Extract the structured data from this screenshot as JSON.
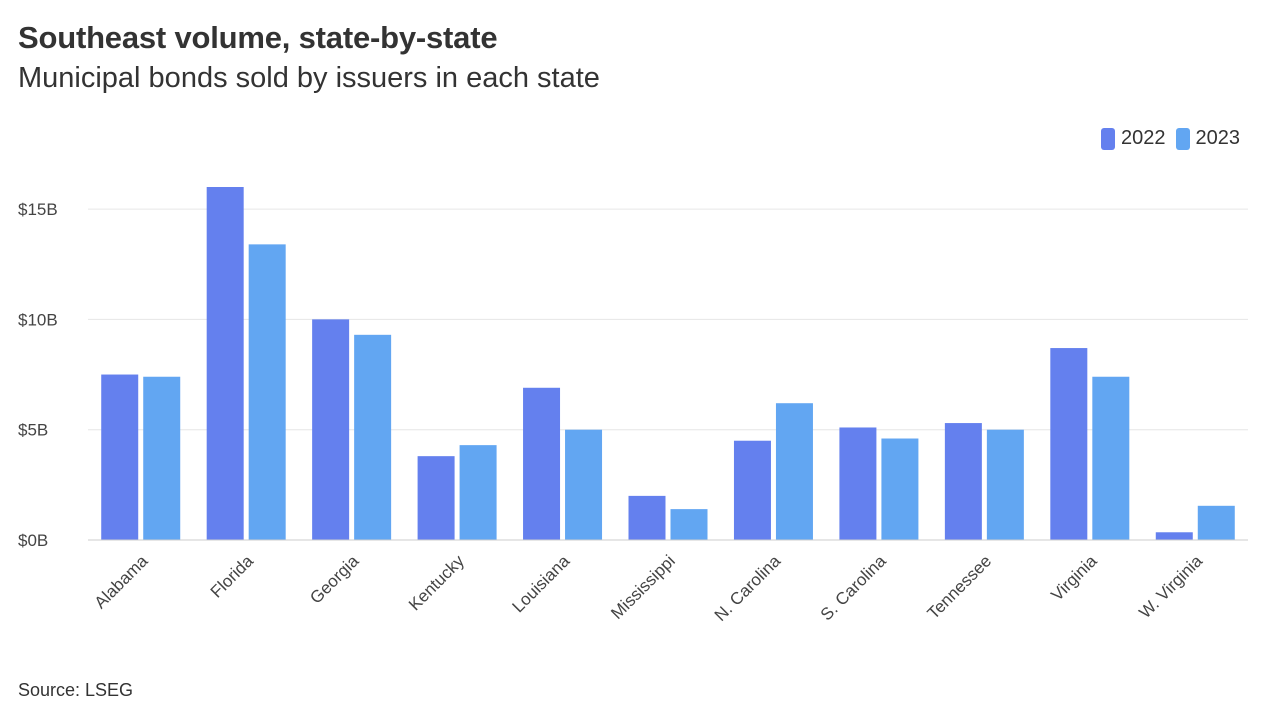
{
  "title": "Southeast volume, state-by-state",
  "subtitle": "Municipal bonds sold by issuers in each state",
  "source": "Source: LSEG",
  "colors": {
    "series_2022": "#6480ee",
    "series_2023": "#62a6f2",
    "grid": "#e6e6e6",
    "axis": "#cccccc"
  },
  "chart_data": {
    "type": "bar",
    "title": "Southeast volume, state-by-state",
    "subtitle": "Municipal bonds sold by issuers in each state",
    "categories": [
      "Alabama",
      "Florida",
      "Georgia",
      "Kentucky",
      "Louisiana",
      "Mississippi",
      "N. Carolina",
      "S. Carolina",
      "Tennessee",
      "Virginia",
      "W. Virginia"
    ],
    "series": [
      {
        "name": "2022",
        "values": [
          7.5,
          16.0,
          10.0,
          3.8,
          6.9,
          2.0,
          4.5,
          5.1,
          5.3,
          8.7,
          0.35
        ]
      },
      {
        "name": "2023",
        "values": [
          7.4,
          13.4,
          9.3,
          4.3,
          5.0,
          1.4,
          6.2,
          4.6,
          5.0,
          7.4,
          1.55
        ]
      }
    ],
    "y_ticks": [
      0,
      5,
      10,
      15
    ],
    "y_tick_labels": [
      "$0B",
      "$5B",
      "$10B",
      "$15B"
    ],
    "ylim": [
      0,
      16.0
    ],
    "grid": true,
    "legend": "top-right"
  }
}
